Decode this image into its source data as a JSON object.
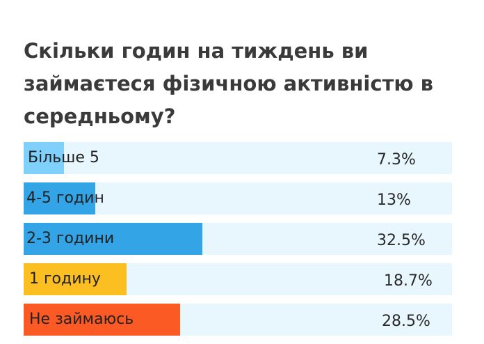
{
  "title": "Скільки годин на тиждень ви займаєтеся фізичною активністю в середньому?",
  "colors": {
    "track": "#e8f6fe",
    "light_blue": "#7fd0fa",
    "blue": "#33a4e6",
    "yellow": "#fbbf22",
    "orange": "#fc5a24"
  },
  "chart_data": {
    "type": "bar",
    "orientation": "horizontal",
    "title": "Скільки годин на тиждень ви займаєтеся фізичною активністю в середньому?",
    "categories": [
      "Більше 5",
      "4-5 годин",
      "2-3 години",
      "1 годину",
      "Не займаюсь"
    ],
    "values": [
      7.3,
      13,
      32.5,
      18.7,
      28.5
    ],
    "value_labels": [
      "7.3%",
      "13%",
      "32.5%",
      "18.7%",
      "28.5%"
    ],
    "bar_colors": [
      "#7fd0fa",
      "#33a4e6",
      "#33a4e6",
      "#fbbf22",
      "#fc5a24"
    ],
    "unit": "%",
    "xlim": [
      0,
      78
    ],
    "grid": false,
    "legend": "none"
  }
}
